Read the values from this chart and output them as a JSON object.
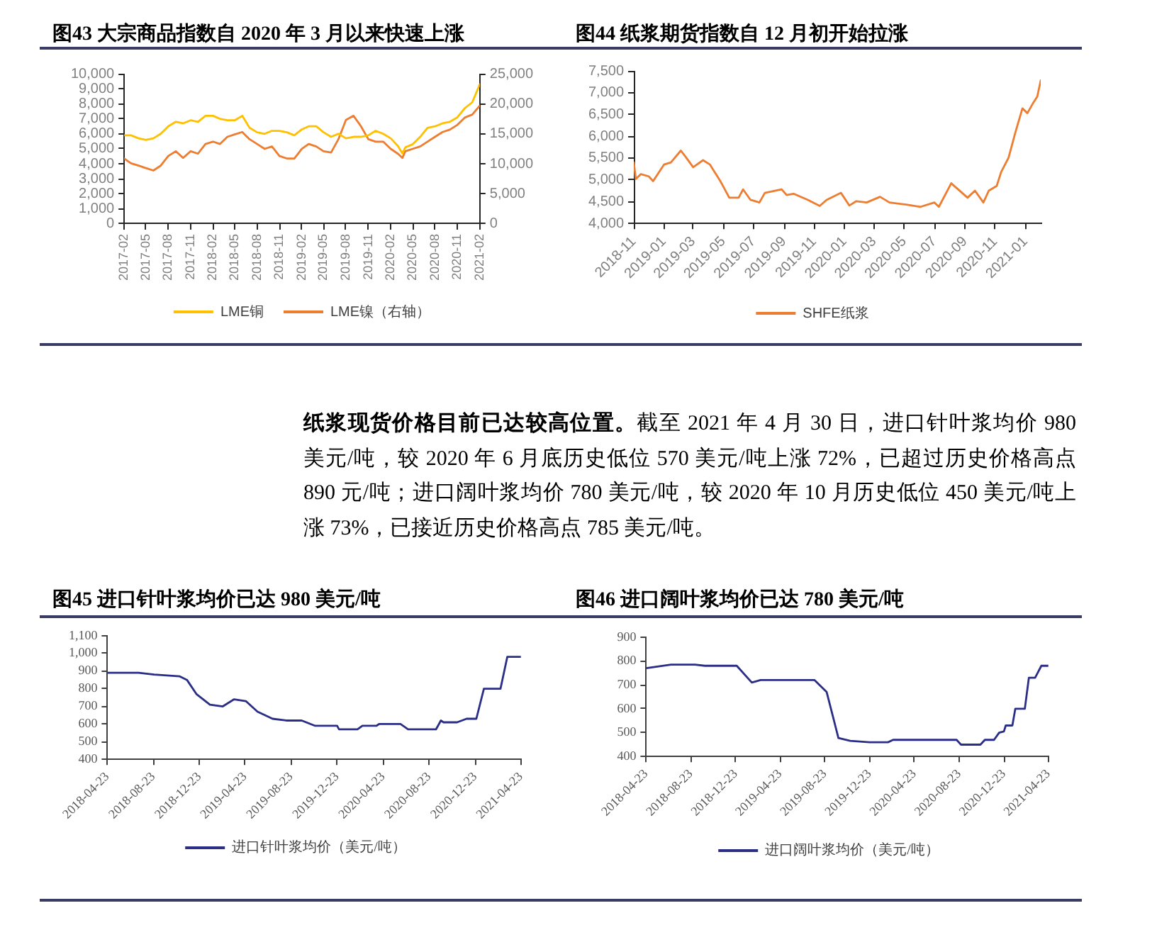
{
  "chart_data": [
    {
      "type": "line",
      "title": "图43 大宗商品指数自 2020 年 3 月以来快速上涨",
      "x": [
        "2017-02-01",
        "2017-03-01",
        "2017-04-01",
        "2017-05-01",
        "2017-06-01",
        "2017-07-01",
        "2017-08-01",
        "2017-09-01",
        "2017-10-01",
        "2017-11-01",
        "2017-12-01",
        "2018-01-01",
        "2018-02-01",
        "2018-03-01",
        "2018-04-01",
        "2018-05-01",
        "2018-06-01",
        "2018-07-01",
        "2018-08-01",
        "2018-09-01",
        "2018-10-01",
        "2018-11-01",
        "2018-12-01",
        "2019-01-01",
        "2019-02-01",
        "2019-03-01",
        "2019-04-01",
        "2019-05-01",
        "2019-06-01",
        "2019-07-01",
        "2019-08-01",
        "2019-09-01",
        "2019-10-01",
        "2019-11-01",
        "2019-12-01",
        "2020-01-01",
        "2020-02-01",
        "2020-03-01",
        "2020-03-20",
        "2020-04-01",
        "2020-05-01",
        "2020-06-01",
        "2020-07-01",
        "2020-08-01",
        "2020-09-01",
        "2020-10-01",
        "2020-11-01",
        "2020-12-01",
        "2021-01-01",
        "2021-02-01"
      ],
      "series": [
        {
          "name": "LME铜",
          "color": "#ffc000",
          "values": [
            5900,
            5900,
            5700,
            5600,
            5700,
            6000,
            6500,
            6800,
            6700,
            6900,
            6800,
            7200,
            7200,
            7000,
            6900,
            6900,
            7200,
            6400,
            6100,
            6000,
            6200,
            6200,
            6100,
            5900,
            6300,
            6500,
            6500,
            6100,
            5800,
            6000,
            5700,
            5800,
            5800,
            5900,
            6200,
            6000,
            5700,
            5200,
            4700,
            5100,
            5300,
            5800,
            6400,
            6500,
            6700,
            6800,
            7100,
            7700,
            8100,
            9300
          ]
        },
        {
          "name": "LME镍（右轴）",
          "color": "#ed7d31",
          "axis": "y2",
          "values": [
            10900,
            10100,
            9700,
            9300,
            8900,
            9700,
            11300,
            12100,
            11000,
            12100,
            11700,
            13300,
            13700,
            13300,
            14500,
            14900,
            15300,
            14100,
            13300,
            12500,
            12900,
            11300,
            10900,
            10900,
            12500,
            13300,
            12900,
            12100,
            11900,
            14100,
            17300,
            18000,
            16300,
            14100,
            13700,
            13700,
            12500,
            11700,
            11000,
            12100,
            12500,
            12900,
            13700,
            14500,
            15300,
            15700,
            16500,
            17700,
            18200,
            19700
          ]
        }
      ],
      "xlim": [
        "2017-02-01",
        "2021-02-01"
      ],
      "xticks": [
        "2017-02",
        "2017-05",
        "2017-08",
        "2017-11",
        "2018-02",
        "2018-05",
        "2018-08",
        "2018-11",
        "2019-02",
        "2019-05",
        "2019-08",
        "2019-11",
        "2020-02",
        "2020-05",
        "2020-08",
        "2020-11",
        "2021-02"
      ],
      "ylim": [
        0,
        10000
      ],
      "yticks": [
        0,
        {
          "value": 1000,
          "label": "1,000"
        },
        {
          "value": 2000,
          "label": "2,000"
        },
        {
          "value": 3000,
          "label": "3,000"
        },
        {
          "value": 4000,
          "label": "4,000"
        },
        {
          "value": 5000,
          "label": "5,000"
        },
        {
          "value": 6000,
          "label": "6,000"
        },
        {
          "value": 7000,
          "label": "7,000"
        },
        {
          "value": 8000,
          "label": "8,000"
        },
        {
          "value": 9000,
          "label": "9,000"
        },
        {
          "value": 10000,
          "label": "10,000"
        }
      ],
      "y2lim": [
        0,
        25000
      ],
      "y2ticks": [
        0,
        {
          "value": 5000,
          "label": "5,000"
        },
        {
          "value": 10000,
          "label": "10,000"
        },
        {
          "value": 15000,
          "label": "15,000"
        },
        {
          "value": 20000,
          "label": "20,000"
        },
        {
          "value": 25000,
          "label": "25,000"
        }
      ],
      "legend": "bottom",
      "marker": "none"
    },
    {
      "type": "line",
      "title": "图44 纸浆期货指数自 12 月初开始拉涨",
      "x": [
        "2018-11-01",
        "2018-11-05",
        "2018-11-15",
        "2018-12-01",
        "2018-12-10",
        "2019-01-01",
        "2019-01-15",
        "2019-02-04",
        "2019-02-15",
        "2019-03-01",
        "2019-03-21",
        "2019-04-04",
        "2019-04-25",
        "2019-05-13",
        "2019-06-01",
        "2019-06-10",
        "2019-06-25",
        "2019-07-13",
        "2019-07-24",
        "2019-08-27",
        "2019-09-06",
        "2019-09-20",
        "2019-10-19",
        "2019-11-12",
        "2019-11-26",
        "2019-12-25",
        "2020-01-11",
        "2020-01-25",
        "2020-02-15",
        "2020-03-13",
        "2020-04-01",
        "2020-05-05",
        "2020-06-03",
        "2020-07-01",
        "2020-07-10",
        "2020-08-04",
        "2020-08-15",
        "2020-09-06",
        "2020-09-21",
        "2020-10-08",
        "2020-10-19",
        "2020-11-04",
        "2020-11-13",
        "2020-11-28",
        "2020-12-12",
        "2020-12-26",
        "2021-01-05",
        "2021-01-16",
        "2021-01-25",
        "2021-02-01"
      ],
      "series": [
        {
          "name": "SHFE纸浆",
          "color": "#ed7d31",
          "values": [
            5400,
            5020,
            5130,
            5080,
            4970,
            5350,
            5400,
            5670,
            5510,
            5290,
            5450,
            5350,
            4970,
            4590,
            4590,
            4780,
            4540,
            4480,
            4700,
            4780,
            4650,
            4680,
            4540,
            4400,
            4540,
            4700,
            4410,
            4510,
            4480,
            4610,
            4480,
            4430,
            4380,
            4480,
            4380,
            4920,
            4810,
            4590,
            4750,
            4480,
            4750,
            4860,
            5180,
            5510,
            6100,
            6640,
            6530,
            6750,
            6910,
            7280
          ]
        }
      ],
      "xlim": [
        "2018-11-01",
        "2021-02-01"
      ],
      "xticks": [
        "2018-11",
        "2019-01",
        "2019-03",
        "2019-05",
        "2019-07",
        "2019-09",
        "2019-11",
        "2020-01",
        "2020-03",
        "2020-05",
        "2020-07",
        "2020-09",
        "2020-11",
        "2021-01"
      ],
      "ylim": [
        4000,
        7500
      ],
      "yticks": [
        {
          "value": 4000,
          "label": "4,000"
        },
        {
          "value": 4500,
          "label": "4,500"
        },
        {
          "value": 5000,
          "label": "5,000"
        },
        {
          "value": 5500,
          "label": "5,500"
        },
        {
          "value": 6000,
          "label": "6,000"
        },
        {
          "value": 6500,
          "label": "6,500"
        },
        {
          "value": 7000,
          "label": "7,000"
        },
        {
          "value": 7500,
          "label": "7,500"
        }
      ],
      "legend": "bottom",
      "marker": "none"
    },
    {
      "type": "other",
      "title": "纸浆现货价格目前已达较高位置。",
      "annotations": [
        "截至 2021 年 4 月 30 日，进口针叶浆均价 980",
        "美元/吨，较 2020 年 6 月底历史低位 570 美元/吨上涨 72%，已超过历史价格高点 890 元/吨；进口阔叶浆均价 780 美元/吨，较 2020 年 10 月历史低位 450 美元/吨上涨 73%，已接近历史价格高点 785 美元/吨。"
      ]
    },
    {
      "type": "line",
      "title": "图45 进口针叶浆均价已达 980 美元/吨",
      "x": [
        "2018-04-23",
        "2018-07-15",
        "2018-08-25",
        "2018-11-01",
        "2018-11-20",
        "2018-12-15",
        "2019-01-20",
        "2019-02-23",
        "2019-03-25",
        "2019-04-25",
        "2019-05-26",
        "2019-07-05",
        "2019-08-10",
        "2019-09-20",
        "2019-10-26",
        "2019-12-23",
        "2019-12-28",
        "2020-02-15",
        "2020-02-28",
        "2020-04-05",
        "2020-04-12",
        "2020-06-08",
        "2020-06-28",
        "2020-09-10",
        "2020-09-23",
        "2020-09-30",
        "2020-11-05",
        "2020-11-30",
        "2020-12-26",
        "2021-01-15",
        "2021-02-28",
        "2021-03-18",
        "2021-04-23"
      ],
      "series": [
        {
          "name": "进口针叶浆均价（美元/吨）",
          "color": "#2b2e86",
          "values": [
            890,
            890,
            880,
            870,
            850,
            770,
            710,
            700,
            740,
            730,
            670,
            630,
            620,
            620,
            590,
            590,
            570,
            570,
            590,
            590,
            600,
            600,
            570,
            570,
            620,
            610,
            610,
            630,
            630,
            800,
            800,
            980,
            980
          ]
        }
      ],
      "xlim": [
        "2018-04-23",
        "2021-04-23"
      ],
      "xticks": [
        "2018-04-23",
        "2018-08-23",
        "2018-12-23",
        "2019-04-23",
        "2019-08-23",
        "2019-12-23",
        "2020-04-23",
        "2020-08-23",
        "2020-12-23",
        "2021-04-23"
      ],
      "ylim": [
        400,
        1100
      ],
      "yticks": [
        400,
        500,
        600,
        700,
        800,
        900,
        {
          "value": 1000,
          "label": "1,000"
        },
        {
          "value": 1100,
          "label": "1,100"
        }
      ],
      "legend": "bottom",
      "marker": "none"
    },
    {
      "type": "line",
      "title": "图46 进口阔叶浆均价已达 780 美元/吨",
      "x": [
        "2018-04-23",
        "2018-06-30",
        "2018-09-03",
        "2018-09-30",
        "2018-12-26",
        "2019-02-05",
        "2019-03-01",
        "2019-07-26",
        "2019-08-28",
        "2019-09-29",
        "2019-10-31",
        "2019-12-23",
        "2020-02-11",
        "2020-02-25",
        "2020-08-16",
        "2020-08-28",
        "2020-10-20",
        "2020-11-01",
        "2020-11-26",
        "2020-12-10",
        "2020-12-23",
        "2020-12-28",
        "2021-01-15",
        "2021-01-23",
        "2021-02-18",
        "2021-03-01",
        "2021-03-18",
        "2021-04-04",
        "2021-04-23"
      ],
      "series": [
        {
          "name": "进口阔叶浆均价（美元/吨）",
          "color": "#2b2e86",
          "values": [
            770,
            785,
            785,
            780,
            780,
            710,
            720,
            720,
            670,
            478,
            466,
            460,
            460,
            470,
            470,
            450,
            450,
            470,
            470,
            500,
            505,
            530,
            530,
            600,
            600,
            730,
            730,
            780,
            780
          ]
        }
      ],
      "xlim": [
        "2018-04-23",
        "2021-04-23"
      ],
      "xticks": [
        "2018-04-23",
        "2018-08-23",
        "2018-12-23",
        "2019-04-23",
        "2019-08-23",
        "2019-12-23",
        "2020-04-23",
        "2020-08-23",
        "2020-12-23",
        "2021-04-23"
      ],
      "ylim": [
        400,
        900
      ],
      "yticks": [
        400,
        500,
        600,
        700,
        800,
        900
      ],
      "legend": "bottom",
      "marker": "none"
    }
  ]
}
